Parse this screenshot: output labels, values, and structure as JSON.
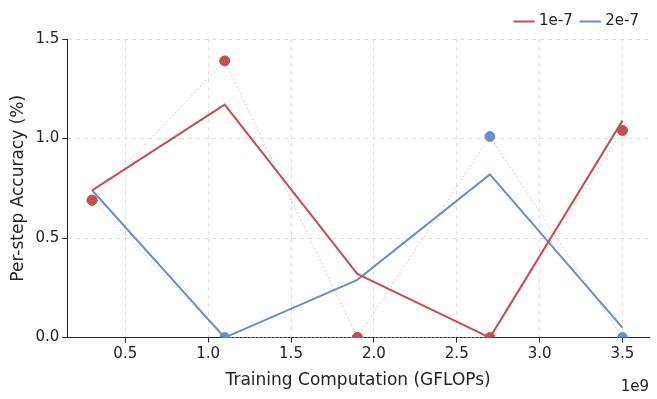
{
  "chart_data": {
    "type": "line",
    "x_label": "Training Computation (GFLOPs)",
    "y_label": "Per-step Accuracy (%)",
    "x_offset_label": "1e9",
    "x": [
      0.3,
      1.1,
      1.9,
      2.7,
      3.5
    ],
    "series": [
      {
        "name": "1e-7",
        "color": "#c44e52",
        "values": [
          0.74,
          1.17,
          0.32,
          0.0,
          1.09
        ],
        "points": [
          0.69,
          1.39,
          0.0,
          0.0,
          1.04
        ]
      },
      {
        "name": "2e-7",
        "color": "#6a8ec8",
        "values": [
          0.74,
          0.0,
          0.29,
          0.82,
          0.05
        ],
        "points": [
          0.69,
          0.0,
          0.0,
          1.01,
          0.0
        ]
      }
    ],
    "xlim": [
      0.15,
      3.66
    ],
    "xticks": [
      0.5,
      {
        "value": 1,
        "label": "1.0"
      },
      1.5,
      {
        "value": 2,
        "label": "2.0"
      },
      2.5,
      {
        "value": 3,
        "label": "3.0"
      },
      3.5
    ],
    "ylim": [
      0,
      1.5
    ],
    "yticks": [
      {
        "value": 0,
        "label": "0.0"
      },
      0.5,
      {
        "value": 1,
        "label": "1.0"
      },
      1.5
    ],
    "grid": true,
    "legend": "upper right"
  }
}
